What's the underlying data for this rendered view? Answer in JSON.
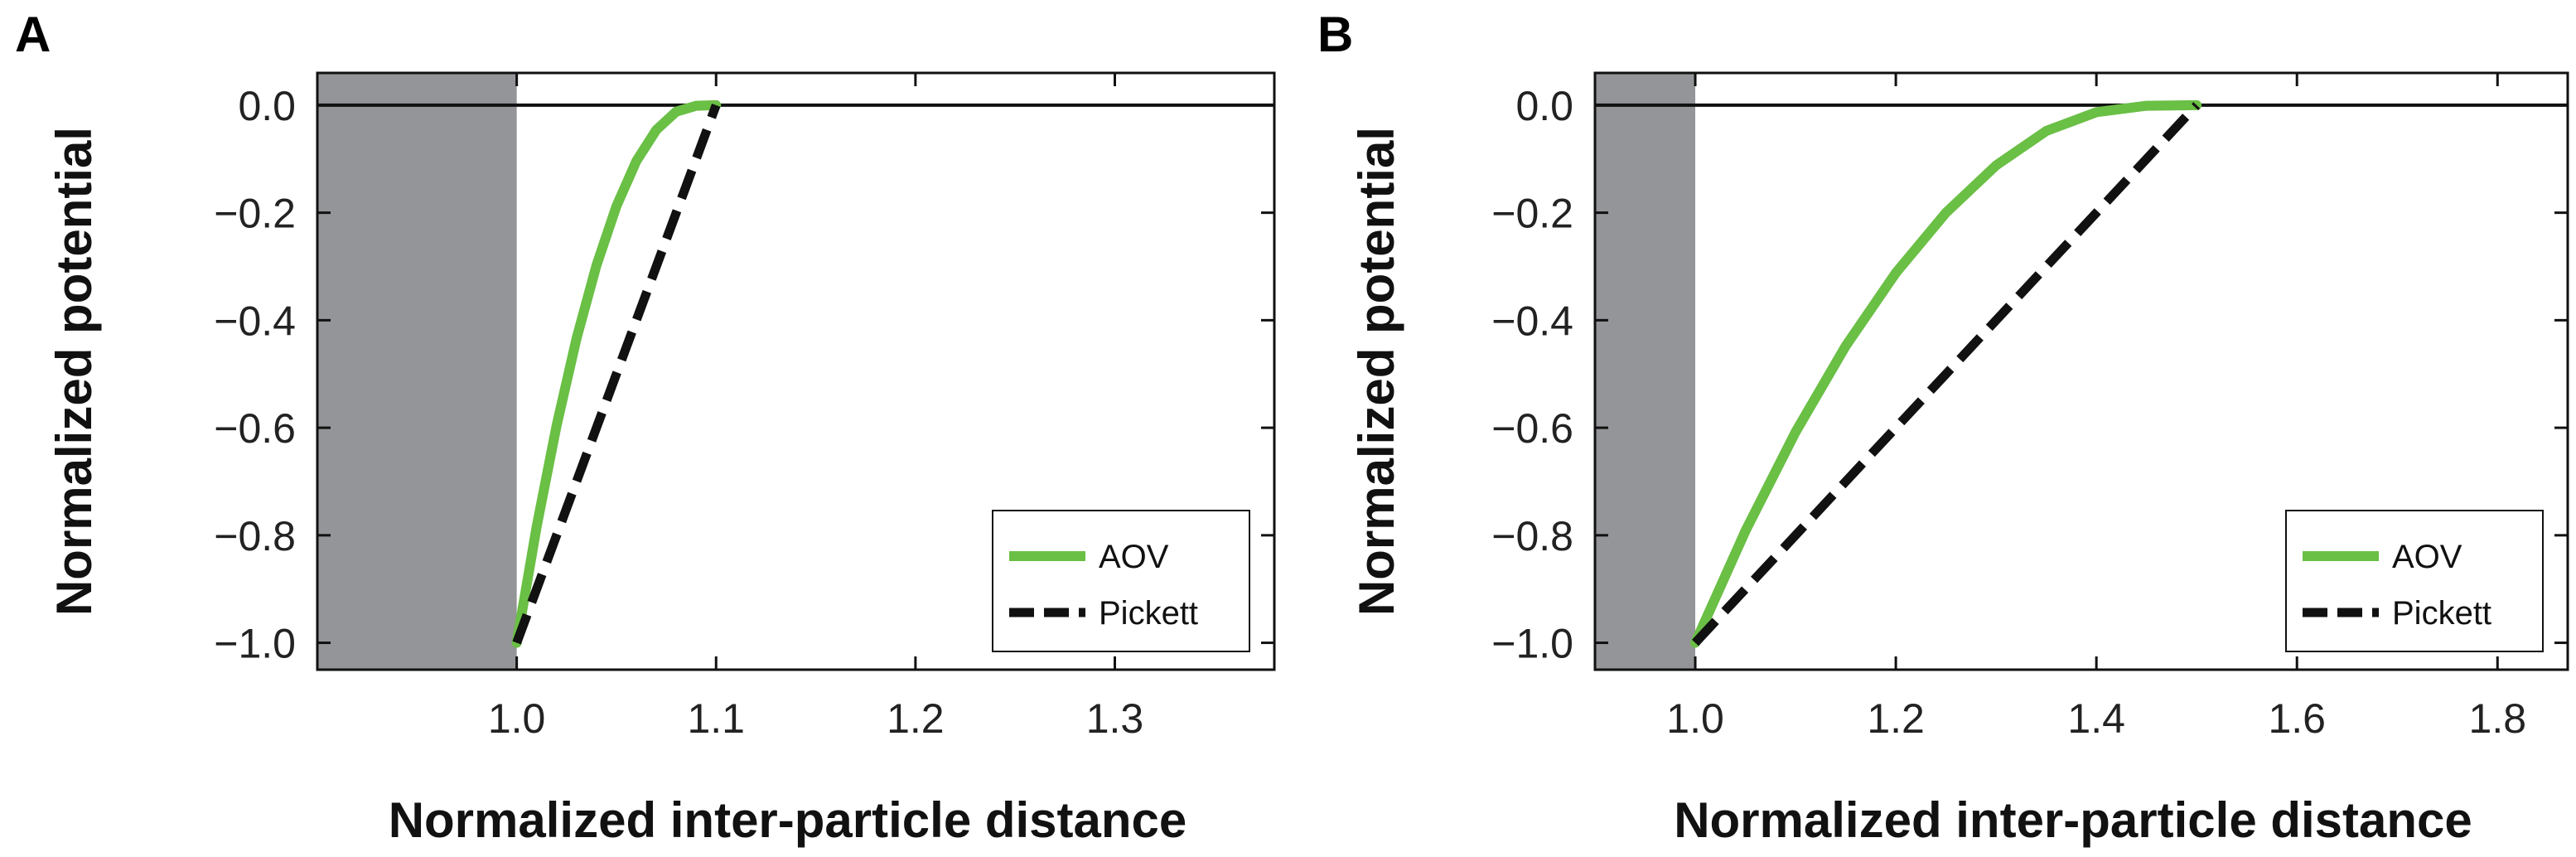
{
  "colors": {
    "aov": "#6abf45",
    "pickett": "#111111",
    "excluded": "#939598",
    "frame": "#111111"
  },
  "chart_data": [
    {
      "type": "line",
      "panel_label": "A",
      "xlabel": "Normalized inter-particle distance",
      "ylabel": "Normalized potential",
      "xlim": [
        0.9,
        1.38
      ],
      "ylim": [
        -1.05,
        0.06
      ],
      "x_ticks": [
        1.0,
        1.1,
        1.2,
        1.3
      ],
      "x_tick_labels": [
        "1.0",
        "1.1",
        "1.2",
        "1.3"
      ],
      "y_ticks": [
        0.0,
        -0.2,
        -0.4,
        -0.6,
        -0.8,
        -1.0
      ],
      "y_tick_labels": [
        "0.0",
        "−0.2",
        "−0.4",
        "−0.6",
        "−0.8",
        "−1.0"
      ],
      "excluded_region": [
        0.9,
        1.0
      ],
      "zero_line": 0.0,
      "legend_position": "bottom-right",
      "series": [
        {
          "name": "AOV",
          "style": "solid",
          "x": [
            1.0,
            1.01,
            1.02,
            1.03,
            1.04,
            1.05,
            1.06,
            1.07,
            1.08,
            1.09,
            1.1
          ],
          "y": [
            -1.0,
            -0.784,
            -0.596,
            -0.434,
            -0.298,
            -0.188,
            -0.104,
            -0.046,
            -0.012,
            -0.001,
            0.0
          ]
        },
        {
          "name": "Pickett",
          "style": "dashed",
          "x": [
            1.0,
            1.1
          ],
          "y": [
            -1.0,
            0.0
          ]
        }
      ]
    },
    {
      "type": "line",
      "panel_label": "B",
      "xlabel": "Normalized inter-particle distance",
      "ylabel": "Normalized potential",
      "xlim": [
        0.9,
        1.87
      ],
      "ylim": [
        -1.05,
        0.06
      ],
      "x_ticks": [
        1.0,
        1.2,
        1.4,
        1.6,
        1.8
      ],
      "x_tick_labels": [
        "1.0",
        "1.2",
        "1.4",
        "1.6",
        "1.8"
      ],
      "y_ticks": [
        0.0,
        -0.2,
        -0.4,
        -0.6,
        -0.8,
        -1.0
      ],
      "y_tick_labels": [
        "0.0",
        "−0.2",
        "−0.4",
        "−0.6",
        "−0.8",
        "−1.0"
      ],
      "excluded_region": [
        0.9,
        1.0
      ],
      "zero_line": 0.0,
      "legend_position": "bottom-right",
      "series": [
        {
          "name": "AOV",
          "style": "solid",
          "x": [
            1.0,
            1.05,
            1.1,
            1.15,
            1.2,
            1.25,
            1.3,
            1.35,
            1.4,
            1.45,
            1.5
          ],
          "y": [
            -1.0,
            -0.792,
            -0.608,
            -0.448,
            -0.312,
            -0.2,
            -0.112,
            -0.048,
            -0.013,
            -0.001,
            0.0
          ]
        },
        {
          "name": "Pickett",
          "style": "dashed",
          "x": [
            1.0,
            1.5
          ],
          "y": [
            -1.0,
            0.0
          ]
        }
      ]
    }
  ]
}
